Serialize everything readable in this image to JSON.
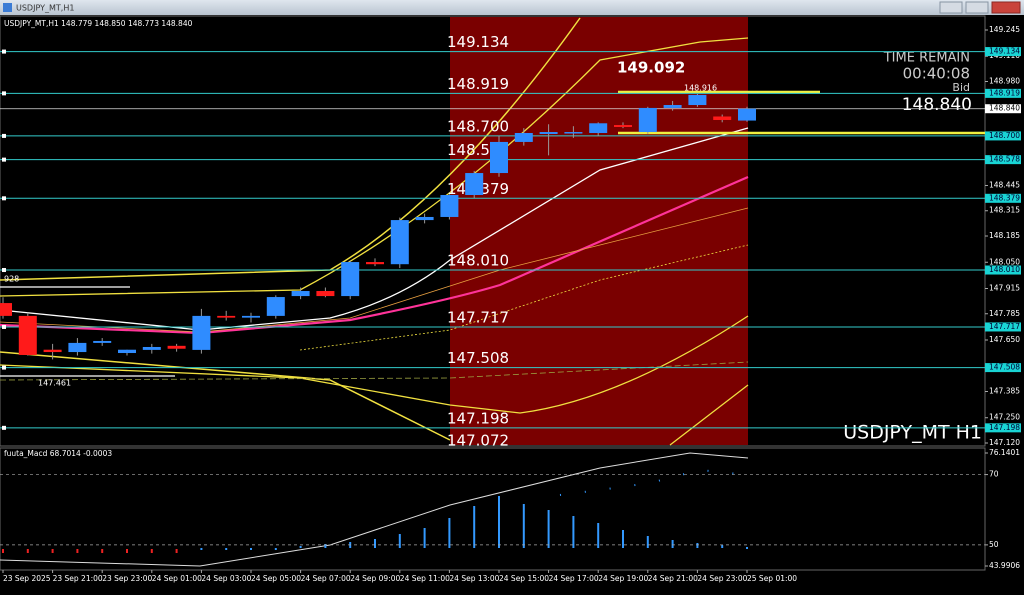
{
  "window": {
    "title": "USDJPY_MT,H1"
  },
  "chart_data": {
    "type": "candlestick",
    "title": "USDJPY_MT,H1  148.779 148.850 148.773 148.840",
    "categories": [
      "23 Sep 2025",
      null,
      "23 Sep 21:00",
      null,
      "23 Sep 23:00",
      null,
      "24 Sep 01:00",
      null,
      "24 Sep 03:00",
      null,
      "24 Sep 05:00",
      null,
      "24 Sep 07:00",
      null,
      "24 Sep 09:00",
      null,
      "24 Sep 11:00",
      null,
      "24 Sep 13:00",
      null,
      "24 Sep 15:00",
      null,
      "24 Sep 17:00",
      null,
      "24 Sep 19:00",
      null,
      "24 Sep 21:00",
      null,
      "24 Sep 23:00",
      null,
      "25 Sep 01:00"
    ],
    "open": [
      147.84,
      147.774,
      147.6,
      147.588,
      147.635,
      147.583,
      147.599,
      147.62,
      147.599,
      147.774,
      147.765,
      147.774,
      147.876,
      147.902,
      147.876,
      148.051,
      148.04,
      148.267,
      148.283,
      148.396,
      148.509,
      148.669,
      148.71,
      148.715,
      148.715,
      148.756,
      148.72,
      148.844,
      148.859,
      148.8,
      148.779
    ],
    "high": [
      147.87,
      147.79,
      147.63,
      147.66,
      147.66,
      147.6,
      147.63,
      147.63,
      147.81,
      147.8,
      147.79,
      147.88,
      147.92,
      147.92,
      148.06,
      148.07,
      148.28,
      148.3,
      148.4,
      148.52,
      148.7,
      148.74,
      148.76,
      148.75,
      148.77,
      148.77,
      148.85,
      148.88,
      148.916,
      148.81,
      148.85
    ],
    "low": [
      147.76,
      147.57,
      147.55,
      147.57,
      147.62,
      147.57,
      147.58,
      147.59,
      147.58,
      147.75,
      147.74,
      147.76,
      147.86,
      147.87,
      147.86,
      148.03,
      148.02,
      148.25,
      148.27,
      148.38,
      148.49,
      148.65,
      148.6,
      148.69,
      148.7,
      148.74,
      148.71,
      148.83,
      148.85,
      148.77,
      148.773
    ],
    "close": [
      147.774,
      147.573,
      147.588,
      147.635,
      147.645,
      147.6,
      147.614,
      147.605,
      147.774,
      147.765,
      147.774,
      147.871,
      147.902,
      147.876,
      148.051,
      148.04,
      148.267,
      148.283,
      148.396,
      148.509,
      148.669,
      148.715,
      148.72,
      148.72,
      148.765,
      148.746,
      148.844,
      148.859,
      148.911,
      148.782,
      148.84
    ],
    "up_color": "#2f8cff",
    "down_color": "#ff1a1a",
    "ylim": [
      147.12,
      149.245
    ],
    "yticks": [
      149.245,
      {
        "value": 149.11,
        "label": "149.110"
      },
      {
        "value": 148.98,
        "label": "148.980"
      },
      148.445,
      148.315,
      148.185,
      {
        "value": 148.05,
        "label": "148.050"
      },
      147.915,
      147.785,
      {
        "value": 147.65,
        "label": "147.650"
      },
      147.385,
      {
        "value": 147.25,
        "label": "147.250"
      },
      {
        "value": 147.12,
        "label": "147.120"
      }
    ],
    "levels": [
      {
        "value": 149.134,
        "label": "149.134"
      },
      {
        "value": 148.919,
        "label": "148.919"
      },
      {
        "value": 148.7,
        "label": "148.700"
      },
      {
        "value": 148.578,
        "label": "148.578"
      },
      {
        "value": 148.379,
        "label": "148.379"
      },
      {
        "value": 148.01,
        "label": "148.010"
      },
      {
        "value": 147.717,
        "label": "147.717"
      },
      {
        "value": 147.508,
        "label": "147.508"
      },
      {
        "value": 147.198,
        "label": "147.198"
      }
    ],
    "bid": {
      "value": 148.84,
      "label": "148.840"
    },
    "annotations": [
      "149.092",
      "148.916",
      "928",
      "147.461",
      "147.072"
    ],
    "info": {
      "time_remain_label": "TIME REMAIN",
      "time_remain": "00:40:08",
      "bid_label": "Bid",
      "symbol": "USDJPY_MT H1"
    }
  },
  "indicator": {
    "name": "fuuta_Macd 68.7014 -0.0003",
    "ylim": [
      43.9906,
      76.1401
    ],
    "yticks": [
      76.1401,
      70,
      50,
      43.9906
    ]
  }
}
